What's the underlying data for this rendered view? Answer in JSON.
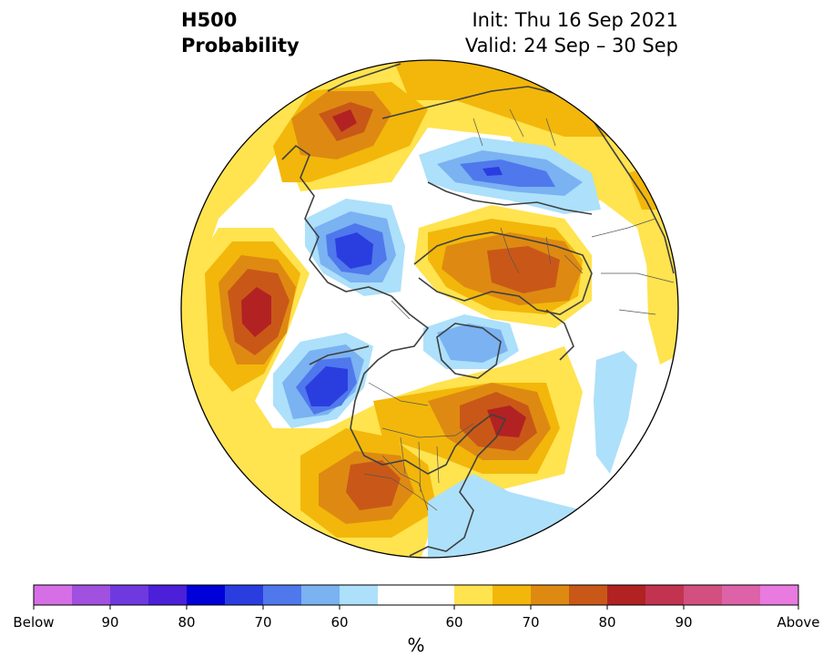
{
  "title": {
    "line1": "H500",
    "line2": "Probability",
    "init": "Init: Thu 16 Sep 2021",
    "valid": "Valid: 24 Sep – 30 Sep"
  },
  "colorbar": {
    "unit": "%",
    "labels": [
      "Below",
      "90",
      "80",
      "70",
      "60",
      "60",
      "70",
      "80",
      "90",
      "Above"
    ],
    "colors": [
      "#d66fe6",
      "#a150e0",
      "#6f39e0",
      "#4b20d8",
      "#0000d8",
      "#2a3ee0",
      "#4f78ec",
      "#7ab2f2",
      "#ade0fa",
      "#ffffff",
      "#ffffff",
      "#ffe34f",
      "#f2b70a",
      "#de8a12",
      "#c95818",
      "#b22222",
      "#c23350",
      "#d24f80",
      "#de62a8",
      "#e87ae0"
    ],
    "palette": {
      "blue_light": "#ade0fa",
      "blue_mid": "#7ab2f2",
      "blue_strong": "#4f78ec",
      "blue_deep": "#2a3ee0",
      "yellow": "#ffe34f",
      "gold": "#f2b70a",
      "orange": "#de8a12",
      "burnt": "#c95818",
      "red": "#b22222"
    }
  },
  "map": {
    "projection": "north-polar-stereographic",
    "features": [
      "coastlines",
      "country-borders",
      "us-state-borders"
    ]
  }
}
